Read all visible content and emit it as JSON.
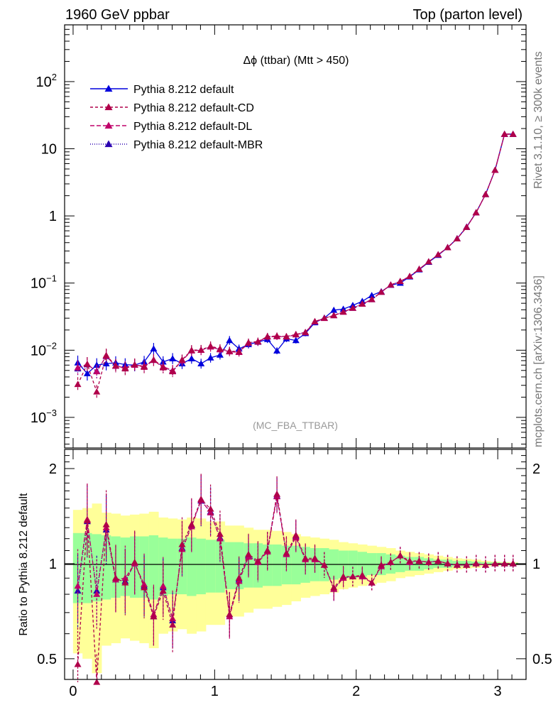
{
  "header": {
    "left": "1960 GeV ppbar",
    "right": "Top (parton level)"
  },
  "side": {
    "rivet": "Rivet 3.1.10, ≥ 300k events",
    "mcplots": "mcplots.cern.ch [arXiv:1306.3436]"
  },
  "chart_data": {
    "type": "line",
    "title": "Δϕ (ttbar) (Mtt > 450)",
    "watermark": "(MC_FBA_TTBAR)",
    "xlim": [
      -0.06,
      3.2
    ],
    "x_ticks": [
      "0",
      "1",
      "2",
      "3"
    ],
    "main": {
      "yscale": "log",
      "ylim": [
        0.00035,
        700
      ],
      "y_ticks": [
        {
          "value": 0.001,
          "base": "10",
          "exp": "−3"
        },
        {
          "value": 0.01,
          "base": "10",
          "exp": "−2"
        },
        {
          "value": 0.1,
          "base": "10",
          "exp": "−1"
        },
        {
          "value": 1,
          "base": "1",
          "exp": ""
        },
        {
          "value": 10,
          "base": "10",
          "exp": ""
        },
        {
          "value": 100,
          "base": "10",
          "exp": "2"
        }
      ]
    },
    "ratio": {
      "ylabel": "Ratio to Pythia 8.212 default",
      "yscale": "log",
      "ylim": [
        0.43,
        2.3
      ],
      "y_ticks": [
        {
          "value": 0.5,
          "label": "0.5"
        },
        {
          "value": 1,
          "label": "1"
        },
        {
          "value": 2,
          "label": "2"
        }
      ],
      "band_green_rel_err": [
        0.25,
        0.25,
        0.24,
        0.23,
        0.22,
        0.21,
        0.22,
        0.22,
        0.23,
        0.21,
        0.2,
        0.2,
        0.21,
        0.2,
        0.19,
        0.19,
        0.17,
        0.17,
        0.16,
        0.16,
        0.15,
        0.15,
        0.14,
        0.14,
        0.13,
        0.12,
        0.12,
        0.11,
        0.1,
        0.1,
        0.09,
        0.08,
        0.08,
        0.07,
        0.06,
        0.05,
        0.05,
        0.04,
        0.03,
        0.03,
        0.02,
        0.02,
        0.015,
        0.01,
        0.01,
        0.008,
        0.006
      ],
      "band_yellow_rel_err": [
        0.48,
        0.5,
        0.55,
        0.45,
        0.44,
        0.42,
        0.43,
        0.44,
        0.46,
        0.4,
        0.39,
        0.38,
        0.4,
        0.39,
        0.36,
        0.36,
        0.32,
        0.32,
        0.3,
        0.28,
        0.28,
        0.27,
        0.26,
        0.24,
        0.22,
        0.21,
        0.2,
        0.19,
        0.17,
        0.16,
        0.15,
        0.14,
        0.13,
        0.12,
        0.1,
        0.09,
        0.08,
        0.07,
        0.06,
        0.05,
        0.04,
        0.035,
        0.03,
        0.02,
        0.015,
        0.012,
        0.01
      ]
    },
    "x": [
      0.033,
      0.1,
      0.167,
      0.234,
      0.301,
      0.368,
      0.435,
      0.502,
      0.569,
      0.636,
      0.703,
      0.77,
      0.837,
      0.904,
      0.971,
      1.038,
      1.105,
      1.172,
      1.239,
      1.306,
      1.373,
      1.44,
      1.507,
      1.574,
      1.641,
      1.708,
      1.775,
      1.842,
      1.909,
      1.976,
      2.043,
      2.11,
      2.177,
      2.244,
      2.311,
      2.378,
      2.445,
      2.512,
      2.579,
      2.646,
      2.713,
      2.78,
      2.847,
      2.914,
      2.981,
      3.048,
      3.108
    ],
    "series": [
      {
        "name": "Pythia 8.212 default",
        "color": "#0000dd",
        "dash": "",
        "values": [
          0.0065,
          0.0045,
          0.006,
          0.0063,
          0.0065,
          0.0061,
          0.006,
          0.0067,
          0.0105,
          0.0067,
          0.0075,
          0.0063,
          0.0075,
          0.0063,
          0.0077,
          0.0085,
          0.014,
          0.0105,
          0.0122,
          0.0132,
          0.0145,
          0.0098,
          0.0148,
          0.014,
          0.0178,
          0.0258,
          0.0302,
          0.0395,
          0.041,
          0.0465,
          0.0535,
          0.0655,
          0.0745,
          0.093,
          0.1,
          0.124,
          0.158,
          0.205,
          0.26,
          0.338,
          0.46,
          0.685,
          1.12,
          2.1,
          4.8,
          16.5,
          16.5
        ],
        "ratio": null
      },
      {
        "name": "Pythia 8.212 default-CD",
        "color": "#b0004a",
        "dash": "4,3",
        "values": [
          0.0031,
          0.0062,
          0.0024,
          0.0084,
          0.0059,
          0.0053,
          0.0061,
          0.0056,
          0.0071,
          0.0055,
          0.0048,
          0.0072,
          0.01,
          0.0101,
          0.0115,
          0.0105,
          0.0097,
          0.0095,
          0.013,
          0.0135,
          0.016,
          0.0163,
          0.016,
          0.0172,
          0.0185,
          0.0268,
          0.03,
          0.033,
          0.0372,
          0.0425,
          0.049,
          0.057,
          0.0735,
          0.094,
          0.106,
          0.126,
          0.161,
          0.208,
          0.265,
          0.338,
          0.458,
          0.679,
          1.12,
          2.09,
          4.81,
          16.5,
          16.5
        ],
        "ratio": [
          0.48,
          1.37,
          0.4,
          1.33,
          0.9,
          0.87,
          1.01,
          0.84,
          0.68,
          0.82,
          0.64,
          1.15,
          1.33,
          1.6,
          1.49,
          1.24,
          0.69,
          0.9,
          1.07,
          1.02,
          1.1,
          1.66,
          1.08,
          1.23,
          1.04,
          1.04,
          0.99,
          0.84,
          0.91,
          0.91,
          0.92,
          0.87,
          0.99,
          1.01,
          1.06,
          1.02,
          1.02,
          1.01,
          1.02,
          1.0,
          0.99,
          0.99,
          1.0,
          0.99,
          1.0,
          1.0,
          1.0
        ]
      },
      {
        "name": "Pythia 8.212 default-DL",
        "color": "#c0006a",
        "dash": "6,3",
        "values": [
          0.0055,
          0.0062,
          0.0048,
          0.0082,
          0.0058,
          0.0055,
          0.006,
          0.0058,
          0.0072,
          0.0057,
          0.005,
          0.007,
          0.0098,
          0.01,
          0.0112,
          0.0102,
          0.0095,
          0.0093,
          0.0128,
          0.0133,
          0.0158,
          0.016,
          0.0158,
          0.017,
          0.0183,
          0.0265,
          0.0298,
          0.0328,
          0.037,
          0.0423,
          0.0487,
          0.0568,
          0.0733,
          0.0938,
          0.1058,
          0.1258,
          0.1608,
          0.2078,
          0.2648,
          0.3378,
          0.4578,
          0.6788,
          1.1198,
          2.0898,
          4.8098,
          16.5,
          16.5
        ],
        "ratio": [
          0.85,
          1.38,
          0.8,
          1.3,
          0.89,
          0.9,
          1.0,
          0.86,
          0.69,
          0.85,
          0.67,
          1.11,
          1.31,
          1.59,
          1.45,
          1.2,
          0.68,
          0.88,
          1.05,
          1.01,
          1.09,
          1.63,
          1.07,
          1.21,
          1.03,
          1.03,
          0.99,
          0.83,
          0.9,
          0.91,
          0.91,
          0.87,
          0.98,
          1.01,
          1.06,
          1.01,
          1.02,
          1.01,
          1.02,
          1.0,
          0.99,
          0.99,
          1.0,
          0.99,
          1.0,
          1.0,
          1.0
        ]
      },
      {
        "name": "Pythia 8.212 default-MBR",
        "color": "#2a00b0",
        "dash": "1,2",
        "values": [
          0.0053,
          0.0061,
          0.0049,
          0.0081,
          0.0058,
          0.0054,
          0.006,
          0.0057,
          0.0071,
          0.0056,
          0.0049,
          0.0071,
          0.0099,
          0.01,
          0.0113,
          0.0103,
          0.0096,
          0.0094,
          0.0129,
          0.0134,
          0.0159,
          0.0161,
          0.0159,
          0.0171,
          0.0184,
          0.0266,
          0.0299,
          0.0329,
          0.0371,
          0.0424,
          0.0488,
          0.0569,
          0.0734,
          0.0939,
          0.1059,
          0.1259,
          0.1609,
          0.2079,
          0.2649,
          0.3379,
          0.4579,
          0.6789,
          1.1199,
          2.0899,
          4.8099,
          16.5,
          16.5
        ],
        "ratio": [
          0.82,
          1.36,
          0.82,
          1.28,
          0.89,
          0.88,
          1.0,
          0.85,
          0.68,
          0.84,
          0.66,
          1.12,
          1.32,
          1.58,
          1.46,
          1.21,
          0.69,
          0.89,
          1.06,
          1.01,
          1.1,
          1.64,
          1.07,
          1.22,
          1.03,
          1.03,
          0.99,
          0.83,
          0.9,
          0.91,
          0.91,
          0.87,
          0.98,
          1.01,
          1.06,
          1.01,
          1.02,
          1.01,
          1.02,
          1.0,
          0.99,
          0.99,
          1.0,
          0.99,
          1.0,
          1.0,
          1.0
        ]
      }
    ]
  }
}
